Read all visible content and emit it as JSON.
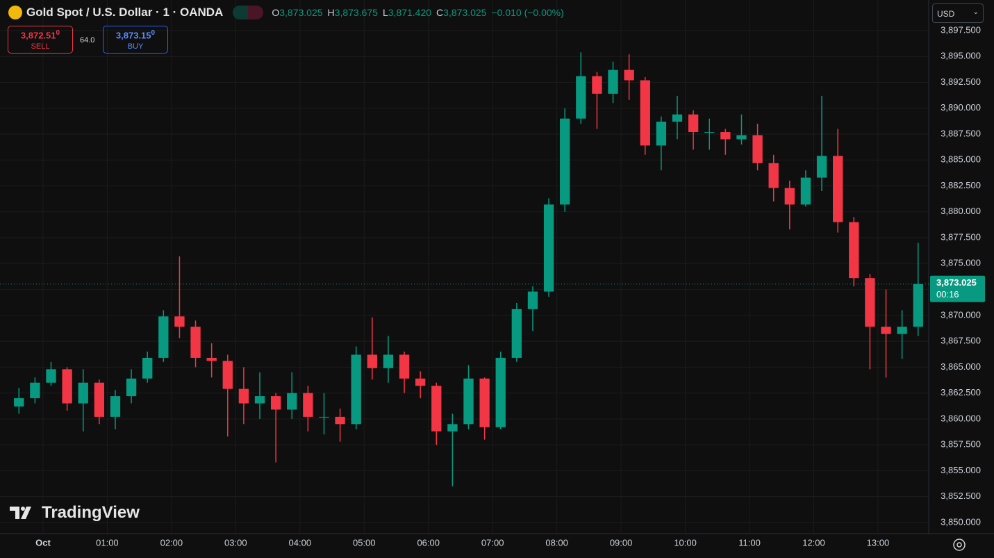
{
  "chart_data": {
    "type": "candlestick",
    "title": "Gold Spot / U.S. Dollar · 1 · OANDA",
    "ohlc_legend": [
      {
        "key": "O",
        "value": "3,873.025"
      },
      {
        "key": "H",
        "value": "3,873.675"
      },
      {
        "key": "L",
        "value": "3,871.420"
      },
      {
        "key": "C",
        "value": "3,873.025"
      }
    ],
    "change": "−0.010 (−0.00%)",
    "sell": {
      "price": "3,872.51",
      "pip": "0",
      "label": "SELL"
    },
    "spread": "64.0",
    "buy": {
      "price": "3,873.15",
      "pip": "0",
      "label": "BUY"
    },
    "currency": "USD",
    "watermark": "TradingView",
    "up_color": "#089981",
    "down_color": "#f23645",
    "grid": true,
    "last_price": {
      "value": 3873.025,
      "label": "3,873.025"
    },
    "countdown": "00:16",
    "xlim": [
      -0.67,
      13.79
    ],
    "xticks": [
      {
        "value": 0,
        "label": "Oct"
      },
      {
        "value": 1,
        "label": "01:00"
      },
      {
        "value": 2,
        "label": "02:00"
      },
      {
        "value": 3,
        "label": "03:00"
      },
      {
        "value": 4,
        "label": "04:00"
      },
      {
        "value": 5,
        "label": "05:00"
      },
      {
        "value": 6,
        "label": "06:00"
      },
      {
        "value": 7,
        "label": "07:00"
      },
      {
        "value": 8,
        "label": "08:00"
      },
      {
        "value": 9,
        "label": "09:00"
      },
      {
        "value": 10,
        "label": "10:00"
      },
      {
        "value": 11,
        "label": "11:00"
      },
      {
        "value": 12,
        "label": "12:00"
      },
      {
        "value": 13,
        "label": "13:00"
      }
    ],
    "ylim": [
      3848.92,
      3900.45
    ],
    "yticks": [
      {
        "value": 3850,
        "label": "3,850.000"
      },
      {
        "value": 3852.5,
        "label": "3,852.500"
      },
      {
        "value": 3855,
        "label": "3,855.000"
      },
      {
        "value": 3857.5,
        "label": "3,857.500"
      },
      {
        "value": 3860,
        "label": "3,860.000"
      },
      {
        "value": 3862.5,
        "label": "3,862.500"
      },
      {
        "value": 3865,
        "label": "3,865.000"
      },
      {
        "value": 3867.5,
        "label": "3,867.500"
      },
      {
        "value": 3870,
        "label": "3,870.000"
      },
      {
        "value": 3872.5,
        "label": "3,872.500"
      },
      {
        "value": 3875,
        "label": "3,875.000"
      },
      {
        "value": 3877.5,
        "label": "3,877.500"
      },
      {
        "value": 3880,
        "label": "3,880.000"
      },
      {
        "value": 3882.5,
        "label": "3,882.500"
      },
      {
        "value": 3885,
        "label": "3,885.000"
      },
      {
        "value": 3887.5,
        "label": "3,887.500"
      },
      {
        "value": 3890,
        "label": "3,890.000"
      },
      {
        "value": 3892.5,
        "label": "3,892.500"
      },
      {
        "value": 3895,
        "label": "3,895.000"
      },
      {
        "value": 3897.5,
        "label": "3,897.500"
      }
    ],
    "x": [
      -0.5,
      -0.25,
      0,
      0.25,
      0.5,
      0.75,
      1,
      1.25,
      1.5,
      1.75,
      2,
      2.25,
      2.5,
      2.75,
      3,
      3.25,
      3.5,
      3.75,
      4,
      4.25,
      4.5,
      4.75,
      5,
      5.25,
      5.5,
      5.75,
      6,
      6.25,
      6.5,
      6.75,
      7,
      7.25,
      7.5,
      7.75,
      8,
      8.25,
      8.5,
      8.75,
      9,
      9.25,
      9.5,
      9.75,
      10,
      10.25,
      10.5,
      10.75,
      11,
      11.25,
      11.5,
      11.75,
      12,
      12.25,
      12.5,
      12.75,
      13,
      13.25,
      13.5
    ],
    "open": [
      3861.2,
      3862.0,
      3863.5,
      3864.8,
      3861.5,
      3863.5,
      3860.2,
      3862.2,
      3863.9,
      3865.9,
      3869.9,
      3868.9,
      3865.9,
      3865.6,
      3862.9,
      3861.5,
      3862.2,
      3860.9,
      3862.5,
      3860.2,
      3860.2,
      3859.5,
      3866.2,
      3864.9,
      3866.2,
      3863.9,
      3863.2,
      3858.8,
      3859.5,
      3863.9,
      3859.2,
      3865.9,
      3870.6,
      3872.3,
      3880.7,
      3889.0,
      3893.1,
      3891.4,
      3893.7,
      3892.7,
      3886.4,
      3888.7,
      3889.4,
      3887.7,
      3887.7,
      3887.0,
      3887.4,
      3884.7,
      3882.3,
      3880.7,
      3883.3,
      3885.4,
      3879.0,
      3873.6,
      3868.9,
      3868.2,
      3868.9
    ],
    "high": [
      3863.0,
      3864.0,
      3865.5,
      3865.0,
      3864.8,
      3863.8,
      3862.8,
      3864.8,
      3866.5,
      3870.5,
      3875.7,
      3869.5,
      3867.3,
      3866.2,
      3865.0,
      3864.5,
      3862.5,
      3864.5,
      3863.2,
      3862.5,
      3861.0,
      3867.0,
      3869.8,
      3868.0,
      3866.5,
      3864.6,
      3863.5,
      3860.5,
      3865.2,
      3864.0,
      3866.5,
      3871.2,
      3872.8,
      3881.3,
      3890.0,
      3895.4,
      3893.5,
      3894.5,
      3895.2,
      3893.0,
      3889.2,
      3891.2,
      3889.8,
      3889.0,
      3888.0,
      3889.4,
      3888.5,
      3885.5,
      3883.0,
      3884.0,
      3891.2,
      3888.0,
      3879.5,
      3874.0,
      3872.5,
      3870.5,
      3877.0
    ],
    "low": [
      3860.5,
      3861.5,
      3863.2,
      3860.8,
      3858.8,
      3859.5,
      3859.0,
      3861.5,
      3863.5,
      3865.5,
      3867.8,
      3865.0,
      3864.0,
      3858.3,
      3859.5,
      3860.0,
      3855.8,
      3860.0,
      3858.8,
      3858.5,
      3857.8,
      3859.0,
      3863.8,
      3863.5,
      3862.5,
      3862.0,
      3857.5,
      3853.5,
      3859.0,
      3858.0,
      3859.0,
      3865.5,
      3868.5,
      3871.8,
      3880.0,
      3888.5,
      3888.0,
      3890.5,
      3890.8,
      3885.5,
      3884.0,
      3887.0,
      3886.0,
      3886.0,
      3885.5,
      3886.5,
      3884.0,
      3881.0,
      3878.3,
      3880.5,
      3882.0,
      3878.0,
      3872.8,
      3864.8,
      3864.0,
      3865.8,
      3868.0
    ],
    "close": [
      3862.0,
      3863.5,
      3864.8,
      3861.5,
      3863.5,
      3860.2,
      3862.2,
      3863.9,
      3865.9,
      3869.9,
      3868.9,
      3865.9,
      3865.6,
      3862.9,
      3861.5,
      3862.2,
      3860.9,
      3862.5,
      3860.2,
      3860.2,
      3859.5,
      3866.2,
      3864.9,
      3866.2,
      3863.9,
      3863.2,
      3858.8,
      3859.5,
      3863.9,
      3859.2,
      3865.9,
      3870.6,
      3872.3,
      3880.7,
      3889.0,
      3893.1,
      3891.4,
      3893.7,
      3892.7,
      3886.4,
      3888.7,
      3889.4,
      3887.7,
      3887.7,
      3887.0,
      3887.4,
      3884.7,
      3882.3,
      3880.7,
      3883.3,
      3885.4,
      3879.0,
      3873.6,
      3868.9,
      3868.2,
      3868.9,
      3873.025
    ]
  }
}
